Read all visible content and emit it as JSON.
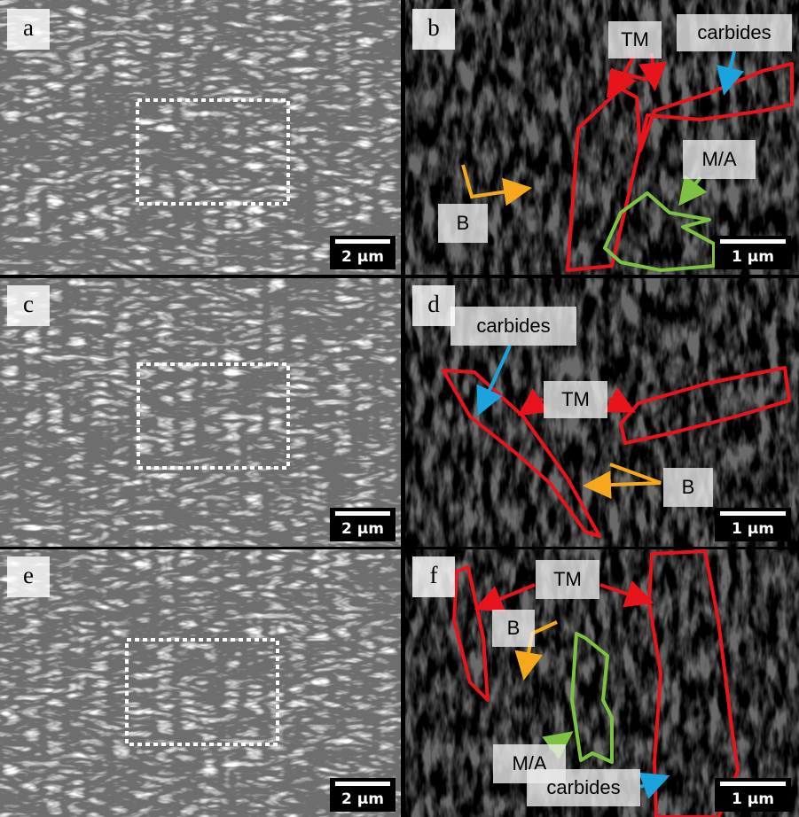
{
  "panels": [
    {
      "label": "a",
      "scale_bar": "2 µm"
    },
    {
      "label": "b",
      "scale_bar": "1 µm",
      "annotations": [
        "TM",
        "carbides",
        "M/A",
        "B"
      ]
    },
    {
      "label": "c",
      "scale_bar": "2 µm"
    },
    {
      "label": "d",
      "scale_bar": "1 µm",
      "annotations": [
        "carbides",
        "TM",
        "B"
      ]
    },
    {
      "label": "e",
      "scale_bar": "2 µm"
    },
    {
      "label": "f",
      "scale_bar": "1 µm",
      "annotations": [
        "TM",
        "B",
        "M/A",
        "carbides"
      ]
    }
  ]
}
